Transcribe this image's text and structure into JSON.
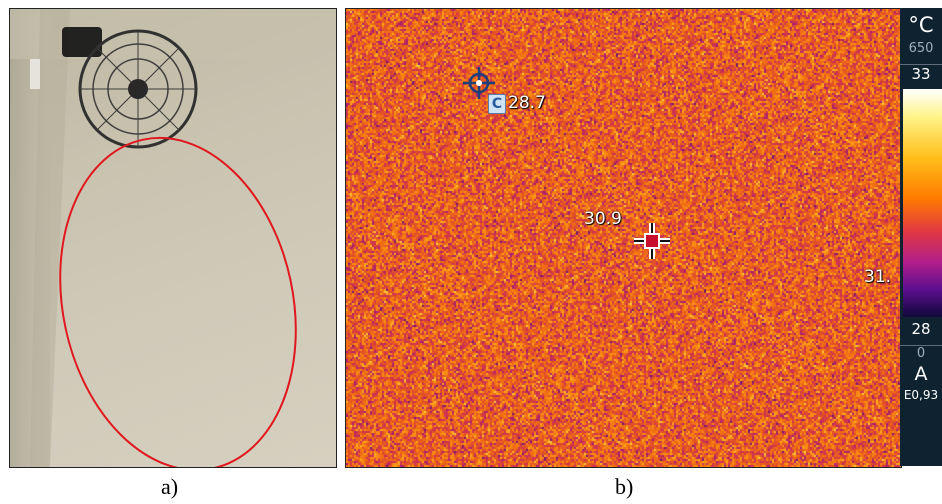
{
  "photo": {
    "caption": "a)",
    "outline_color": "#e0181e"
  },
  "thermal": {
    "caption": "b)",
    "palette": "iron",
    "cold_point": {
      "marker_label": "C",
      "value": "28.7"
    },
    "center_point": {
      "value": "30.9"
    },
    "right_edge_value": "31.",
    "scale": {
      "unit": "°C",
      "range_top_label": "650",
      "max_label": "33",
      "min_label": "28",
      "lower_label": "0",
      "mode": "A",
      "emissivity": "E0,93"
    }
  }
}
